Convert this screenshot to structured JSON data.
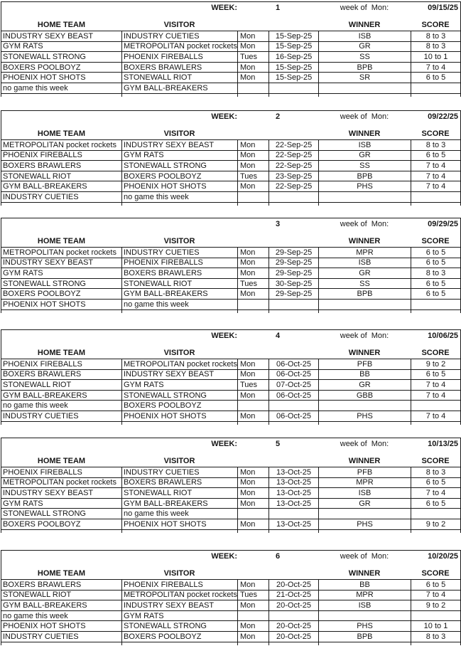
{
  "labels": {
    "week": "WEEK:",
    "week_of": "week of  Mon:",
    "home": "HOME TEAM",
    "visitor": "VISITOR",
    "winner": "WINNER",
    "score": "SCORE"
  },
  "weeks": [
    {
      "number": "1",
      "show_week_label": true,
      "week_of": "09/15/25",
      "games": [
        {
          "home": "INDUSTRY SEXY BEAST",
          "visitor": "INDUSTRY CUETIES",
          "day": "Mon",
          "date": "15-Sep-25",
          "winner": "ISB",
          "score": "8 to 3"
        },
        {
          "home": "GYM RATS",
          "visitor": "METROPOLITAN pocket rockets",
          "day": "Mon",
          "date": "15-Sep-25",
          "winner": "GR",
          "score": "8 to 3"
        },
        {
          "home": "STONEWALL STRONG",
          "visitor": "PHOENIX FIREBALLS",
          "day": "Tues",
          "date": "16-Sep-25",
          "winner": "SS",
          "score": "10 to 1"
        },
        {
          "home": "BOXERS POOLBOYZ",
          "visitor": "BOXERS BRAWLERS",
          "day": "Mon",
          "date": "15-Sep-25",
          "winner": "BPB",
          "score": "7 to 4"
        },
        {
          "home": "PHOENIX HOT SHOTS",
          "visitor": "STONEWALL RIOT",
          "day": "Mon",
          "date": "15-Sep-25",
          "winner": "SR",
          "score": "6 to 5"
        },
        {
          "home": "no game this week",
          "visitor": "GYM BALL-BREAKERS",
          "day": "",
          "date": "",
          "winner": "",
          "score": ""
        }
      ]
    },
    {
      "number": "2",
      "show_week_label": true,
      "week_of": "09/22/25",
      "games": [
        {
          "home": "METROPOLITAN pocket rockets",
          "visitor": "INDUSTRY SEXY BEAST",
          "day": "Mon",
          "date": "22-Sep-25",
          "winner": "ISB",
          "score": "8 to 3"
        },
        {
          "home": "PHOENIX FIREBALLS",
          "visitor": "GYM RATS",
          "day": "Mon",
          "date": "22-Sep-25",
          "winner": "GR",
          "score": "6 to 5"
        },
        {
          "home": "BOXERS BRAWLERS",
          "visitor": "STONEWALL STRONG",
          "day": "Mon",
          "date": "22-Sep-25",
          "winner": "SS",
          "score": "7 to 4"
        },
        {
          "home": "STONEWALL RIOT",
          "visitor": "BOXERS POOLBOYZ",
          "day": "Tues",
          "date": "23-Sep-25",
          "winner": "BPB",
          "score": "7 to 4"
        },
        {
          "home": "GYM BALL-BREAKERS",
          "visitor": "PHOENIX HOT SHOTS",
          "day": "Mon",
          "date": "22-Sep-25",
          "winner": "PHS",
          "score": "7 to 4"
        },
        {
          "home": "INDUSTRY CUETIES",
          "visitor": "no game this week",
          "day": "",
          "date": "",
          "winner": "",
          "score": ""
        }
      ]
    },
    {
      "number": "3",
      "show_week_label": false,
      "week_of": "09/29/25",
      "games": [
        {
          "home": "METROPOLITAN pocket rockets",
          "visitor": "INDUSTRY CUETIES",
          "day": "Mon",
          "date": "29-Sep-25",
          "winner": "MPR",
          "score": "6 to 5"
        },
        {
          "home": "INDUSTRY SEXY BEAST",
          "visitor": "PHOENIX FIREBALLS",
          "day": "Mon",
          "date": "29-Sep-25",
          "winner": "ISB",
          "score": "6 to 5"
        },
        {
          "home": "GYM RATS",
          "visitor": "BOXERS BRAWLERS",
          "day": "Mon",
          "date": "29-Sep-25",
          "winner": "GR",
          "score": "8 to 3"
        },
        {
          "home": "STONEWALL STRONG",
          "visitor": "STONEWALL RIOT",
          "day": "Tues",
          "date": "30-Sep-25",
          "winner": "SS",
          "score": "6 to 5"
        },
        {
          "home": "BOXERS POOLBOYZ",
          "visitor": "GYM BALL-BREAKERS",
          "day": "Mon",
          "date": "29-Sep-25",
          "winner": "BPB",
          "score": "6 to 5"
        },
        {
          "home": "PHOENIX HOT SHOTS",
          "visitor": "no game this week",
          "day": "",
          "date": "",
          "winner": "",
          "score": ""
        }
      ]
    },
    {
      "number": "4",
      "show_week_label": true,
      "week_of": "10/06/25",
      "games": [
        {
          "home": "PHOENIX FIREBALLS",
          "visitor": "METROPOLITAN pocket rockets",
          "day": "Mon",
          "date": "06-Oct-25",
          "winner": "PFB",
          "score": "9 to 2"
        },
        {
          "home": "BOXERS BRAWLERS",
          "visitor": "INDUSTRY SEXY BEAST",
          "day": "Mon",
          "date": "06-Oct-25",
          "winner": "BB",
          "score": "6 to 5"
        },
        {
          "home": "STONEWALL RIOT",
          "visitor": "GYM RATS",
          "day": "Tues",
          "date": "07-Oct-25",
          "winner": "GR",
          "score": "7 to 4"
        },
        {
          "home": "GYM BALL-BREAKERS",
          "visitor": "STONEWALL STRONG",
          "day": "Mon",
          "date": "06-Oct-25",
          "winner": "GBB",
          "score": "7 to 4"
        },
        {
          "home": "no game this week",
          "visitor": "BOXERS POOLBOYZ",
          "day": "",
          "date": "",
          "winner": "",
          "score": ""
        },
        {
          "home": "INDUSTRY CUETIES",
          "visitor": "PHOENIX HOT SHOTS",
          "day": "Mon",
          "date": "06-Oct-25",
          "winner": "PHS",
          "score": "7 to 4"
        }
      ]
    },
    {
      "number": "5",
      "show_week_label": true,
      "week_of": "10/13/25",
      "games": [
        {
          "home": "PHOENIX FIREBALLS",
          "visitor": "INDUSTRY CUETIES",
          "day": "Mon",
          "date": "13-Oct-25",
          "winner": "PFB",
          "score": "8 to 3"
        },
        {
          "home": "METROPOLITAN pocket rockets",
          "visitor": "BOXERS BRAWLERS",
          "day": "Mon",
          "date": "13-Oct-25",
          "winner": "MPR",
          "score": "6 to 5"
        },
        {
          "home": "INDUSTRY SEXY BEAST",
          "visitor": "STONEWALL RIOT",
          "day": "Mon",
          "date": "13-Oct-25",
          "winner": "ISB",
          "score": "7 to 4"
        },
        {
          "home": "GYM RATS",
          "visitor": "GYM BALL-BREAKERS",
          "day": "Mon",
          "date": "13-Oct-25",
          "winner": "GR",
          "score": "6 to 5"
        },
        {
          "home": "STONEWALL STRONG",
          "visitor": "no game this week",
          "day": "",
          "date": "",
          "winner": "",
          "score": ""
        },
        {
          "home": "BOXERS POOLBOYZ",
          "visitor": "PHOENIX HOT SHOTS",
          "day": "Mon",
          "date": "13-Oct-25",
          "winner": "PHS",
          "score": "9 to 2"
        }
      ]
    },
    {
      "number": "6",
      "show_week_label": true,
      "week_of": "10/20/25",
      "games": [
        {
          "home": "BOXERS BRAWLERS",
          "visitor": "PHOENIX FIREBALLS",
          "day": "Mon",
          "date": "20-Oct-25",
          "winner": "BB",
          "score": "6 to 5"
        },
        {
          "home": "STONEWALL RIOT",
          "visitor": "METROPOLITAN pocket rockets",
          "day": "Tues",
          "date": "21-Oct-25",
          "winner": "MPR",
          "score": "7 to 4"
        },
        {
          "home": "GYM BALL-BREAKERS",
          "visitor": "INDUSTRY SEXY BEAST",
          "day": "Mon",
          "date": "20-Oct-25",
          "winner": "ISB",
          "score": "9 to 2"
        },
        {
          "home": "no game this week",
          "visitor": "GYM RATS",
          "day": "",
          "date": "",
          "winner": "",
          "score": ""
        },
        {
          "home": "PHOENIX HOT SHOTS",
          "visitor": "STONEWALL STRONG",
          "day": "Mon",
          "date": "20-Oct-25",
          "winner": "PHS",
          "score": "10 to 1"
        },
        {
          "home": "INDUSTRY CUETIES",
          "visitor": "BOXERS POOLBOYZ",
          "day": "Mon",
          "date": "20-Oct-25",
          "winner": "BPB",
          "score": "8 to 3"
        }
      ]
    }
  ]
}
